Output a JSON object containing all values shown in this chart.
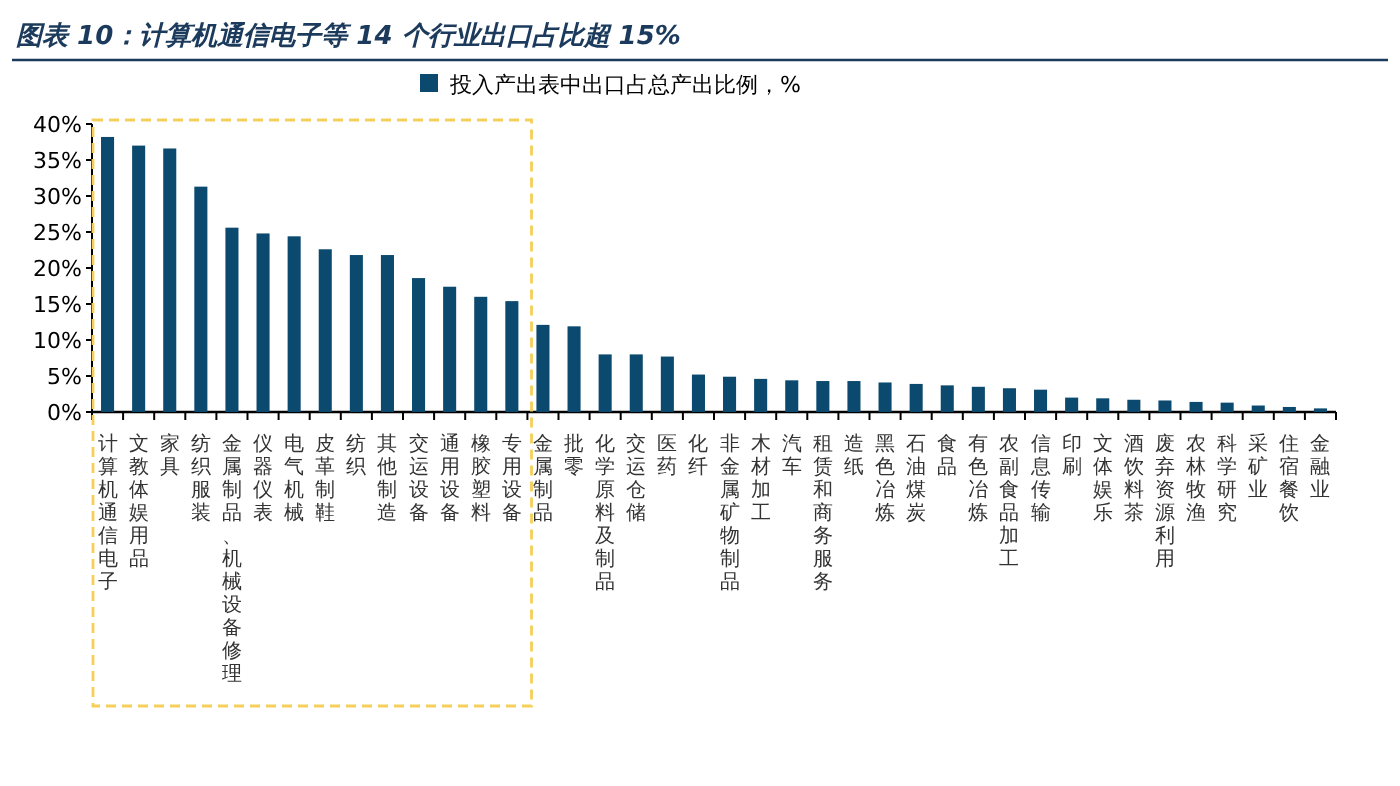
{
  "chart_data": {
    "type": "bar",
    "title": "图表 10：计算机通信电子等 14 个行业出口占比超 15%",
    "categories": [
      "计算机通信电子",
      "文教体娱用品",
      "家具",
      "纺织服装",
      "金属制品、机械设备修理",
      "仪器仪表",
      "电气机械",
      "皮革制鞋",
      "纺织",
      "其他制造",
      "交运设备",
      "通用设备",
      "橡胶塑料",
      "专用设备",
      "金属制品",
      "批零",
      "化学原料及制品",
      "交运仓储",
      "医药",
      "化纤",
      "非金属矿物制品",
      "木材加工",
      "汽车",
      "租赁和商务服务",
      "造纸",
      "黑色冶炼",
      "石油煤炭",
      "食品",
      "有色冶炼",
      "农副食品加工",
      "信息传输",
      "印刷",
      "文体娱乐",
      "酒饮料茶",
      "废弃资源利用",
      "农林牧渔",
      "科学研究",
      "采矿业",
      "住宿餐饮",
      "金融业"
    ],
    "series": [
      {
        "name": "投入产出表中出口占总产出比例，%",
        "color": "#0b4a6e",
        "values": [
          38.2,
          37.0,
          36.6,
          31.3,
          25.6,
          24.8,
          24.4,
          22.6,
          21.8,
          21.8,
          18.6,
          17.4,
          16.0,
          15.4,
          12.1,
          11.9,
          8.0,
          8.0,
          7.7,
          5.2,
          4.9,
          4.6,
          4.4,
          4.3,
          4.3,
          4.1,
          3.9,
          3.7,
          3.5,
          3.3,
          3.1,
          2.0,
          1.9,
          1.7,
          1.6,
          1.4,
          1.3,
          0.9,
          0.7,
          0.5
        ]
      }
    ],
    "ylim": [
      0,
      40
    ],
    "yticks": [
      {
        "value": 0,
        "label": "0%"
      },
      {
        "value": 5,
        "label": "5%"
      },
      {
        "value": 10,
        "label": "10%"
      },
      {
        "value": 15,
        "label": "15%"
      },
      {
        "value": 20,
        "label": "20%"
      },
      {
        "value": 25,
        "label": "25%"
      },
      {
        "value": 30,
        "label": "30%"
      },
      {
        "value": 35,
        "label": "35%"
      },
      {
        "value": 40,
        "label": "40%"
      }
    ],
    "grid": false,
    "legend": "top"
  }
}
